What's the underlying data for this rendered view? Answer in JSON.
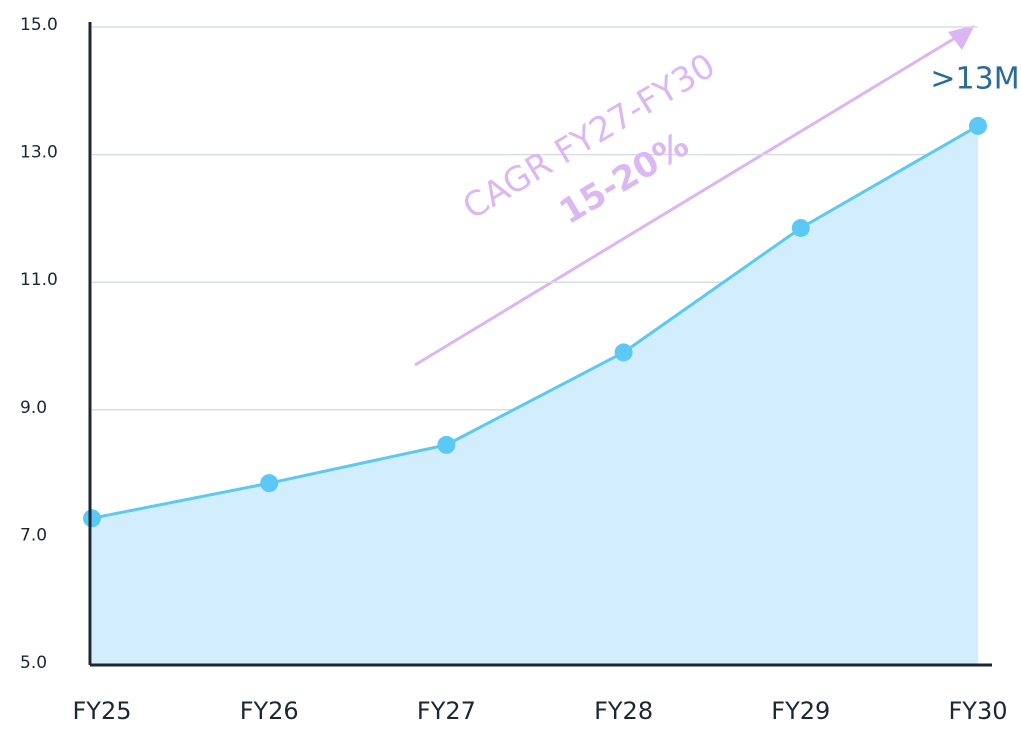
{
  "chart_data": {
    "type": "area",
    "categories": [
      "FY25",
      "FY26",
      "FY27",
      "FY28",
      "FY29",
      "FY30"
    ],
    "values": [
      7.3,
      7.85,
      8.45,
      9.9,
      11.85,
      13.45
    ],
    "color": "#5cc8f6",
    "fill": "#d2eefc",
    "ylim": [
      5,
      15
    ],
    "yticks": [
      {
        "value": 5,
        "label": "5.0"
      },
      {
        "value": 7,
        "label": "7.0"
      },
      {
        "value": 9,
        "label": "9.0"
      },
      {
        "value": 11,
        "label": "11.0"
      },
      {
        "value": 13,
        "label": "13.0"
      },
      {
        "value": 15,
        "label": "15.0"
      }
    ],
    "grid": true,
    "annotations": {
      "cagr": "CAGR FY27-FY30",
      "rate": "15-20%",
      "end": ">13M"
    }
  }
}
